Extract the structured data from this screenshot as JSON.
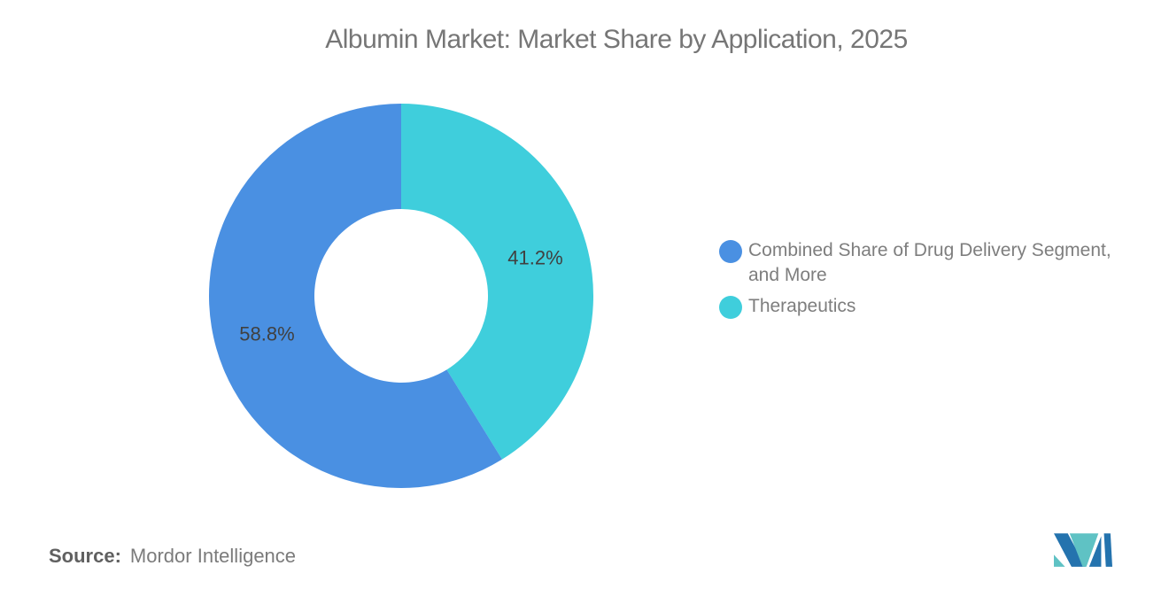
{
  "title": "Albumin Market: Market Share by Application, 2025",
  "chart_data": {
    "type": "pie",
    "donut": true,
    "title": "Albumin Market: Market Share by Application, 2025",
    "series": [
      {
        "name": "Combined Share of Drug Delivery Segment, and More",
        "value": 58.8,
        "label": "58.8%",
        "color": "#4A90E2"
      },
      {
        "name": "Therapeutics",
        "value": 41.2,
        "label": "41.2%",
        "color": "#3FCEDC"
      }
    ],
    "start_angle_deg": 0,
    "direction": "clockwise",
    "draw_order_from_top_clockwise": [
      1,
      0
    ],
    "inner_radius_ratio": 0.45,
    "slice_label_color": "#404040",
    "legend_position": "right",
    "background": "#FFFFFF"
  },
  "legend": {
    "items": [
      {
        "line1": "Combined Share of Drug Delivery Segment,",
        "line2": "and More",
        "color": "#4A90E2"
      },
      {
        "line1": "Therapeutics",
        "line2": "",
        "color": "#3FCEDC"
      }
    ]
  },
  "source": {
    "prefix": "Source:",
    "name": "Mordor Intelligence"
  },
  "branding": {
    "logo": "mordor-intelligence-logo",
    "colors": {
      "teal": "#5FC2C4",
      "blue": "#2473AE"
    }
  }
}
